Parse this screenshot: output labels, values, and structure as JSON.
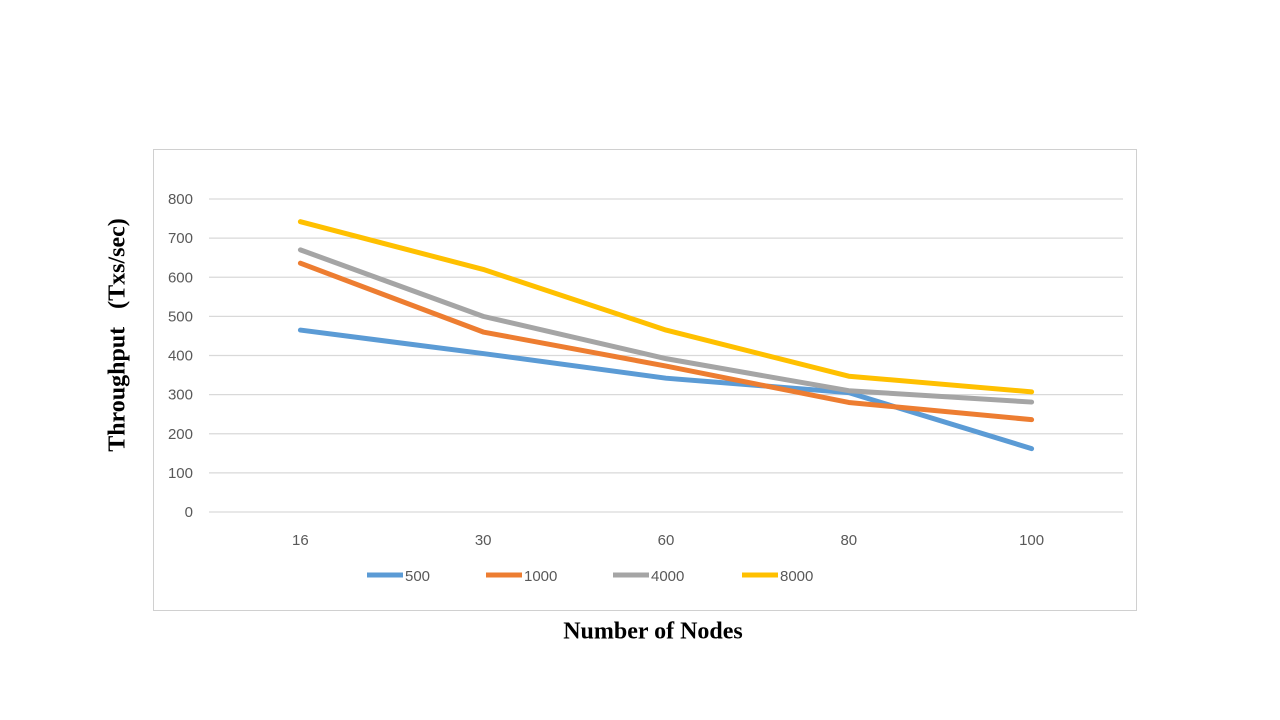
{
  "chart_data": {
    "type": "line",
    "xlabel": "Number of Nodes",
    "ylabel": "Throughput   (Txs/sec)",
    "categories": [
      "16",
      "30",
      "60",
      "80",
      "100"
    ],
    "ylim": [
      0,
      800
    ],
    "yticks": [
      "0",
      "100",
      "200",
      "300",
      "400",
      "500",
      "600",
      "700",
      "800"
    ],
    "grid": true,
    "legend_position": "bottom",
    "series": [
      {
        "name": "500",
        "color": "#5B9BD5",
        "values": [
          465,
          405,
          342,
          305,
          162
        ]
      },
      {
        "name": "1000",
        "color": "#ED7D31",
        "values": [
          636,
          460,
          373,
          280,
          236
        ]
      },
      {
        "name": "4000",
        "color": "#A5A5A5",
        "values": [
          670,
          500,
          392,
          310,
          281
        ]
      },
      {
        "name": "8000",
        "color": "#FFC000",
        "values": [
          742,
          620,
          465,
          347,
          307
        ]
      }
    ]
  }
}
